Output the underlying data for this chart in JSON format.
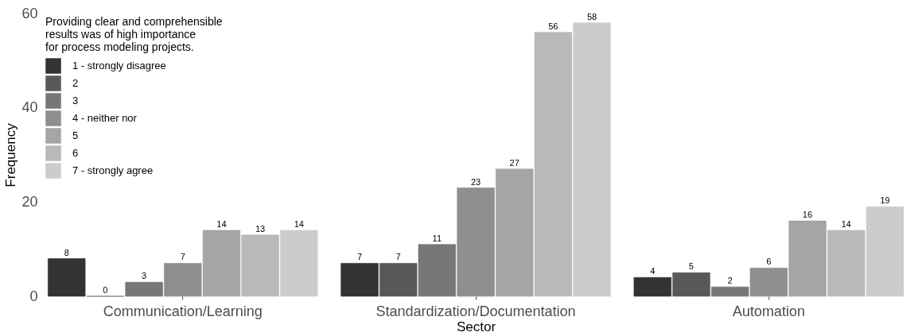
{
  "chart_data": {
    "type": "bar",
    "xlabel": "Sector",
    "ylabel": "Frequency",
    "legend_title": "Providing clear and comprehensible\nresults was of high importance\nfor process modeling projects.",
    "legend": "top left",
    "data_labels": true,
    "grid": false,
    "categories": [
      "Communication/Learning",
      "Standardization/Documentation",
      "Automation"
    ],
    "ylim": [
      0,
      60
    ],
    "yticks": [
      0,
      20,
      40,
      60
    ],
    "series": [
      {
        "name": "1 - strongly disagree",
        "color": "#333333",
        "values": [
          8,
          7,
          4
        ]
      },
      {
        "name": "2",
        "color": "#595959",
        "values": [
          0,
          7,
          5
        ]
      },
      {
        "name": "3",
        "color": "#777777",
        "values": [
          3,
          11,
          2
        ]
      },
      {
        "name": "4 - neither nor",
        "color": "#8f8f8f",
        "values": [
          7,
          23,
          6
        ]
      },
      {
        "name": "5",
        "color": "#a5a5a5",
        "values": [
          14,
          27,
          16
        ]
      },
      {
        "name": "6",
        "color": "#b9b9b9",
        "values": [
          13,
          56,
          14
        ]
      },
      {
        "name": "7 - strongly agree",
        "color": "#cccccc",
        "values": [
          14,
          58,
          19
        ]
      }
    ]
  }
}
